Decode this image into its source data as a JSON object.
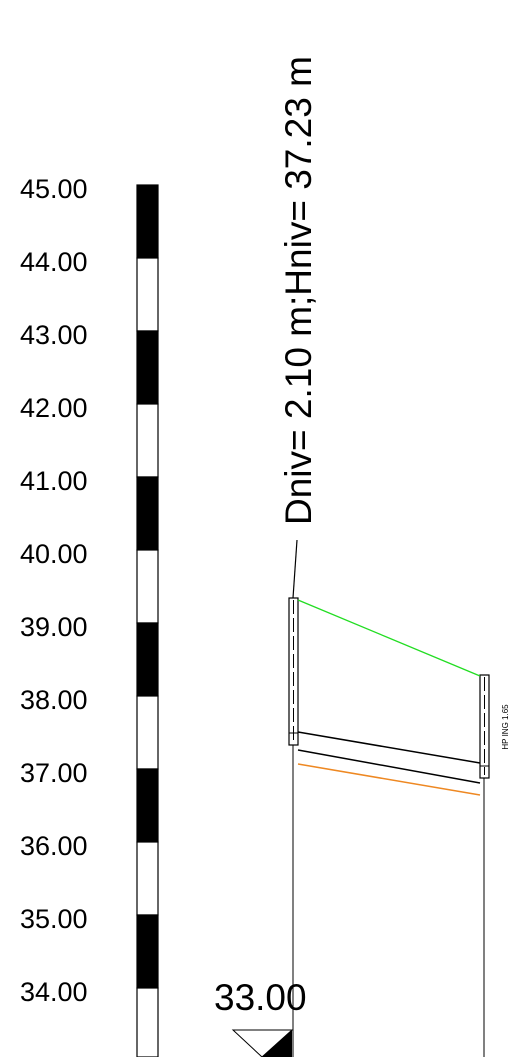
{
  "scale_labels": [
    "45.00",
    "44.00",
    "43.00",
    "42.00",
    "41.00",
    "40.00",
    "39.00",
    "38.00",
    "37.00",
    "36.00",
    "35.00",
    "34.00"
  ],
  "annotation": "Dniv= 2.10 m;Hniv= 37.23 m",
  "level_label": "33.00",
  "side_label": "HP ING 1.65"
}
